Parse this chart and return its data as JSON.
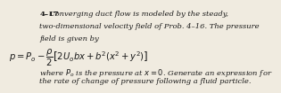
{
  "background_color": "#f0ebe0",
  "title_text": "4–17",
  "body_line1": "  Converging duct flow is modeled by the steady,",
  "body_line2": "two-dimensional velocity field of Prob. 4–16. The pressure",
  "body_line3": "field is given by",
  "equation": "$p = P_o - \\dfrac{\\rho}{2}\\left[2U_o bx + b^2(x^2 + y^2)\\right]$",
  "footer_line1": "where $P_o$ is the pressure at $x = 0$. Generate an expression for",
  "footer_line2": "the rate of change of pressure following a fluid particle.",
  "font_size_body": 6.0,
  "font_size_eq": 7.2,
  "text_color": "#1a1a1a"
}
